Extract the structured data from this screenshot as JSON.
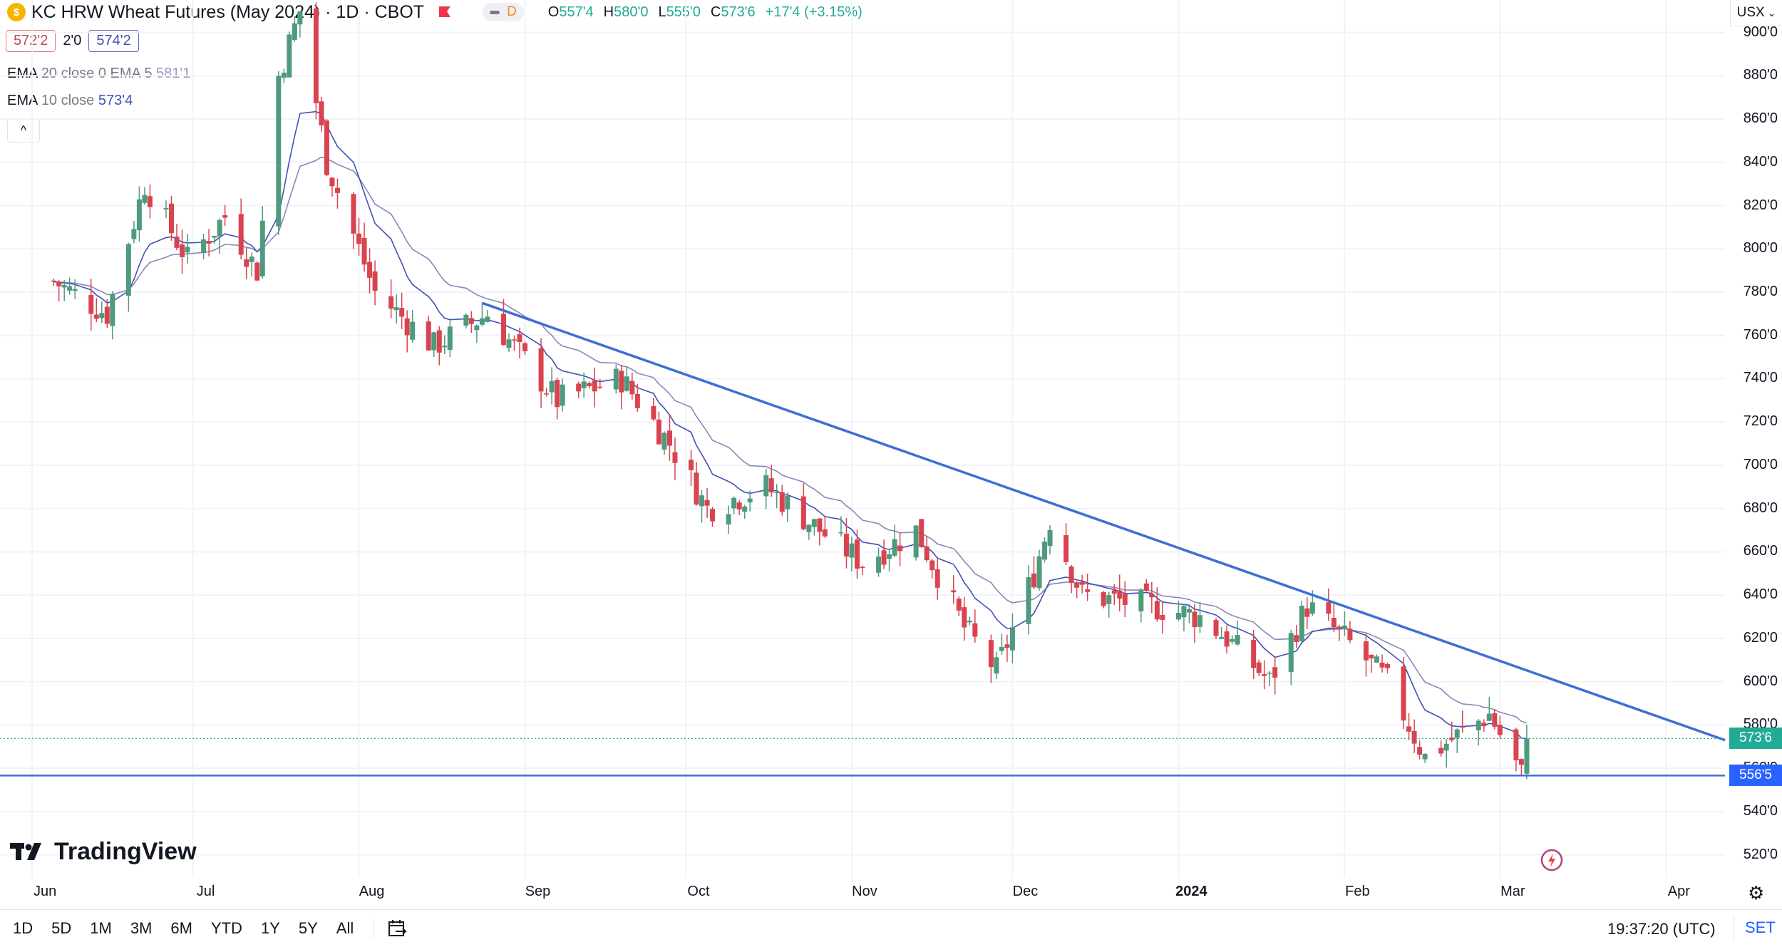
{
  "header": {
    "symbol_icon_glyph": "$",
    "title": "KC HRW Wheat Futures (May 2024) · 1D · CBOT",
    "market_status": "D",
    "ohlc": [
      {
        "key": "O",
        "value": "557'4"
      },
      {
        "key": "H",
        "value": "580'0"
      },
      {
        "key": "L",
        "value": "555'0"
      },
      {
        "key": "C",
        "value": "573'6"
      }
    ],
    "change": "+17'4 (+3.15%)",
    "currency": "USX"
  },
  "quote": {
    "bid": "572'2",
    "spread": "2'0",
    "ask": "574'2"
  },
  "indicators": [
    {
      "name": "EMA",
      "params": "20 close 0 EMA 5",
      "value": "581'1"
    },
    {
      "name": "EMA",
      "params": "10 close",
      "value": "573'4"
    }
  ],
  "collapse_glyph": "^",
  "price_axis": {
    "ticks": [
      "900'0",
      "880'0",
      "860'0",
      "840'0",
      "820'0",
      "800'0",
      "780'0",
      "760'0",
      "740'0",
      "720'0",
      "700'0",
      "680'0",
      "660'0",
      "640'0",
      "620'0",
      "600'0",
      "580'0",
      "560'0",
      "540'0",
      "520'0"
    ],
    "last_price_tag": "573'6",
    "hline_tag": "556'5"
  },
  "time_axis": {
    "ticks": [
      "Jun",
      "Jul",
      "Aug",
      "Sep",
      "Oct",
      "Nov",
      "Dec",
      "2024",
      "Feb",
      "Mar",
      "Apr"
    ]
  },
  "chart_data": {
    "type": "candlestick",
    "symbol": "KC HRW Wheat Futures (May 2024)",
    "interval": "1D",
    "exchange": "CBOT",
    "y_unit": "cents/bushel",
    "ylim": [
      510,
      915
    ],
    "x_range": [
      "2023-05-26",
      "2024-04-12"
    ],
    "closes": [
      {
        "date": "2023-06-05",
        "close": 785
      },
      {
        "date": "2023-06-15",
        "close": 770
      },
      {
        "date": "2023-06-22",
        "close": 830
      },
      {
        "date": "2023-06-30",
        "close": 795
      },
      {
        "date": "2023-07-07",
        "close": 815
      },
      {
        "date": "2023-07-13",
        "close": 790
      },
      {
        "date": "2023-07-17",
        "close": 880
      },
      {
        "date": "2023-07-21",
        "close": 910
      },
      {
        "date": "2023-07-26",
        "close": 840
      },
      {
        "date": "2023-08-04",
        "close": 780
      },
      {
        "date": "2023-08-15",
        "close": 755
      },
      {
        "date": "2023-08-25",
        "close": 770
      },
      {
        "date": "2023-09-07",
        "close": 730
      },
      {
        "date": "2023-09-19",
        "close": 740
      },
      {
        "date": "2023-09-28",
        "close": 710
      },
      {
        "date": "2023-10-05",
        "close": 680
      },
      {
        "date": "2023-10-16",
        "close": 690
      },
      {
        "date": "2023-10-26",
        "close": 670
      },
      {
        "date": "2023-11-03",
        "close": 655
      },
      {
        "date": "2023-11-13",
        "close": 670
      },
      {
        "date": "2023-11-22",
        "close": 625
      },
      {
        "date": "2023-11-28",
        "close": 605
      },
      {
        "date": "2023-12-05",
        "close": 650
      },
      {
        "date": "2023-12-08",
        "close": 675
      },
      {
        "date": "2023-12-14",
        "close": 640
      },
      {
        "date": "2023-12-27",
        "close": 635
      },
      {
        "date": "2024-01-05",
        "close": 630
      },
      {
        "date": "2024-01-10",
        "close": 620
      },
      {
        "date": "2024-01-18",
        "close": 600
      },
      {
        "date": "2024-01-25",
        "close": 635
      },
      {
        "date": "2024-02-01",
        "close": 620
      },
      {
        "date": "2024-02-09",
        "close": 600
      },
      {
        "date": "2024-02-16",
        "close": 565
      },
      {
        "date": "2024-02-22",
        "close": 575
      },
      {
        "date": "2024-02-28",
        "close": 585
      },
      {
        "date": "2024-03-05",
        "close": 557
      },
      {
        "date": "2024-03-06",
        "close": 573.75
      }
    ],
    "ema10_last": "573'4",
    "ema20_last": "581'1",
    "trendline": {
      "from": {
        "date": "2023-08-24",
        "price": 775
      },
      "to": {
        "date": "2024-04-12",
        "price": 573
      }
    },
    "support_line_price": "556'5",
    "last_price": "573'6"
  }
}
